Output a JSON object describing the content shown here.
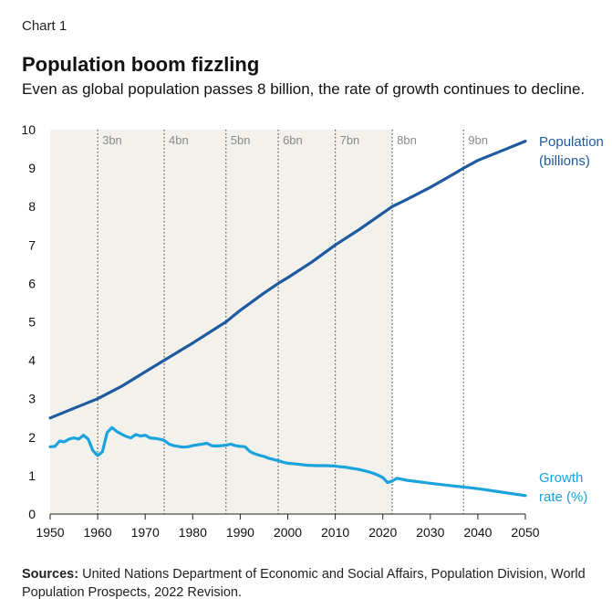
{
  "header": {
    "label": "Chart 1",
    "title": "Population boom fizzling",
    "subtitle": "Even as global population passes 8 billion, the rate of growth continues to decline."
  },
  "sources": {
    "prefix": "Sources:",
    "text": "United Nations Department of Economic and Social Affairs, Population Division, World Population Prospects, 2022 Revision."
  },
  "colors": {
    "population": "#1f5aa0",
    "growth": "#1aa3dc",
    "shade": "#f3f1ec",
    "milestone": "#555555",
    "milestone_text": "#8a8a8a"
  },
  "chart_data": {
    "type": "line",
    "title": "Population boom fizzling",
    "xlim": [
      1950,
      2050
    ],
    "ylim": [
      0,
      10
    ],
    "x_ticks": [
      "1950",
      "1960",
      "1970",
      "1980",
      "1990",
      "2000",
      "2010",
      "2020",
      "2030",
      "2040",
      "2050"
    ],
    "y_ticks": [
      "0",
      "1",
      "2",
      "3",
      "4",
      "5",
      "6",
      "7",
      "8",
      "9",
      "10"
    ],
    "shaded_range": [
      1950,
      2022
    ],
    "milestones": [
      {
        "year": 1960,
        "label": "3bn"
      },
      {
        "year": 1974,
        "label": "4bn"
      },
      {
        "year": 1987,
        "label": "5bn"
      },
      {
        "year": 1998,
        "label": "6bn"
      },
      {
        "year": 2010,
        "label": "7bn"
      },
      {
        "year": 2022,
        "label": "8bn"
      },
      {
        "year": 2037,
        "label": "9bn"
      }
    ],
    "series": [
      {
        "name": "Population (billions)",
        "label_lines": [
          "Population",
          "(billions)"
        ],
        "x": [
          1950,
          1955,
          1960,
          1965,
          1970,
          1974,
          1980,
          1987,
          1990,
          1995,
          1998,
          2000,
          2005,
          2010,
          2015,
          2020,
          2022,
          2025,
          2030,
          2035,
          2037,
          2040,
          2045,
          2050
        ],
        "y": [
          2.5,
          2.75,
          3.0,
          3.32,
          3.7,
          4.0,
          4.45,
          5.0,
          5.3,
          5.75,
          6.0,
          6.15,
          6.55,
          7.0,
          7.4,
          7.83,
          8.0,
          8.18,
          8.5,
          8.85,
          9.0,
          9.2,
          9.45,
          9.7
        ]
      },
      {
        "name": "Growth rate (%)",
        "label_lines": [
          "Growth",
          "rate (%)"
        ],
        "x": [
          1950,
          1951,
          1952,
          1953,
          1954,
          1955,
          1956,
          1957,
          1958,
          1959,
          1960,
          1961,
          1962,
          1963,
          1964,
          1965,
          1966,
          1967,
          1968,
          1969,
          1970,
          1971,
          1972,
          1973,
          1974,
          1975,
          1976,
          1977,
          1978,
          1979,
          1980,
          1981,
          1982,
          1983,
          1984,
          1985,
          1986,
          1987,
          1988,
          1989,
          1990,
          1991,
          1992,
          1993,
          1994,
          1995,
          1996,
          1997,
          1998,
          1999,
          2000,
          2002,
          2004,
          2006,
          2008,
          2010,
          2011,
          2012,
          2013,
          2014,
          2015,
          2016,
          2017,
          2018,
          2019,
          2020,
          2021,
          2022,
          2023,
          2025,
          2030,
          2035,
          2040,
          2045,
          2050
        ],
        "y": [
          1.75,
          1.76,
          1.9,
          1.88,
          1.95,
          1.98,
          1.95,
          2.05,
          1.95,
          1.65,
          1.52,
          1.62,
          2.12,
          2.25,
          2.15,
          2.08,
          2.02,
          1.98,
          2.07,
          2.03,
          2.05,
          1.98,
          1.97,
          1.95,
          1.92,
          1.82,
          1.78,
          1.76,
          1.74,
          1.75,
          1.78,
          1.8,
          1.82,
          1.84,
          1.78,
          1.77,
          1.78,
          1.79,
          1.82,
          1.78,
          1.76,
          1.75,
          1.63,
          1.57,
          1.53,
          1.5,
          1.45,
          1.42,
          1.39,
          1.35,
          1.32,
          1.3,
          1.27,
          1.26,
          1.26,
          1.25,
          1.23,
          1.22,
          1.2,
          1.18,
          1.16,
          1.13,
          1.1,
          1.06,
          1.01,
          0.95,
          0.82,
          0.86,
          0.93,
          0.88,
          0.8,
          0.73,
          0.66,
          0.57,
          0.48
        ]
      }
    ]
  }
}
